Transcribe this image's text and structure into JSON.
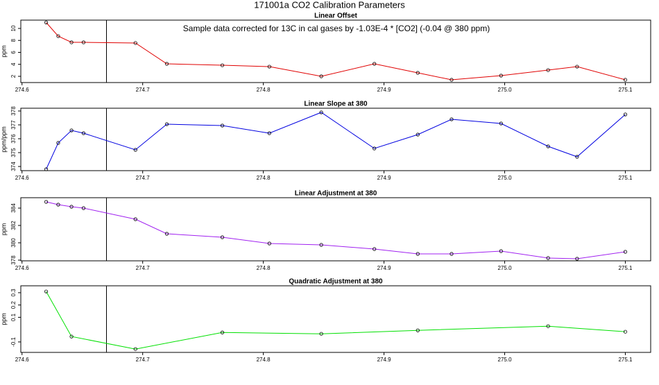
{
  "title": "171001a   CO2 Calibration Parameters",
  "chart_data": [
    {
      "type": "line",
      "title": "Linear Offset",
      "ylabel": "ppm",
      "annotation": "Sample data corrected for 13C in cal gases by -1.03E-4 * [CO2] (-0.04 @ 380 ppm)",
      "x": [
        274.62,
        274.63,
        274.641,
        274.651,
        274.694,
        274.72,
        274.766,
        274.805,
        274.848,
        274.892,
        274.928,
        274.956,
        274.997,
        275.036,
        275.06,
        275.1
      ],
      "values": [
        11.0,
        8.72,
        7.68,
        7.68,
        7.57,
        4.09,
        3.85,
        3.62,
        2.0,
        4.09,
        2.58,
        1.42,
        2.12,
        3.04,
        3.62,
        1.42
      ],
      "color": "#e00000",
      "vline": 274.67,
      "xlim": [
        274.599,
        275.121
      ],
      "ylim": [
        0.96,
        11.39
      ],
      "xticks": [
        274.6,
        274.7,
        274.8,
        274.9,
        {
          "value": 275,
          "label": "275.0"
        },
        275.1
      ],
      "yticks": [
        2,
        4,
        6,
        8,
        10
      ]
    },
    {
      "type": "line",
      "title": "Linear Slope at 380",
      "ylabel": "ppm/ppm",
      "x": [
        274.62,
        274.63,
        274.641,
        274.651,
        274.694,
        274.72,
        274.766,
        274.805,
        274.848,
        274.892,
        274.928,
        274.956,
        274.997,
        275.036,
        275.06,
        275.1
      ],
      "values": [
        373.8,
        375.7,
        376.6,
        376.4,
        375.2,
        377.05,
        376.95,
        376.4,
        377.9,
        375.3,
        376.3,
        377.4,
        377.1,
        375.45,
        374.7,
        377.75
      ],
      "color": "#0000e0",
      "vline": 274.67,
      "xlim": [
        274.599,
        275.121
      ],
      "ylim": [
        373.7,
        378.2
      ],
      "xticks": [
        274.6,
        274.7,
        274.8,
        274.9,
        {
          "value": 275,
          "label": "275.0"
        },
        275.1
      ],
      "yticks": [
        374,
        375,
        376,
        377,
        378
      ]
    },
    {
      "type": "line",
      "title": "Linear Adjustment at 380",
      "ylabel": "ppm",
      "x": [
        274.62,
        274.63,
        274.641,
        274.651,
        274.694,
        274.72,
        274.766,
        274.805,
        274.848,
        274.892,
        274.928,
        274.956,
        274.997,
        275.036,
        275.06,
        275.1
      ],
      "values": [
        384.72,
        384.4,
        384.16,
        384.0,
        382.72,
        381.04,
        380.64,
        379.92,
        379.76,
        379.28,
        378.72,
        378.72,
        379.04,
        378.24,
        378.16,
        378.96
      ],
      "color": "#a020f0",
      "vline": 274.67,
      "xlim": [
        274.599,
        275.121
      ],
      "ylim": [
        377.92,
        385.2
      ],
      "xticks": [
        274.6,
        274.7,
        274.8,
        274.9,
        {
          "value": 275,
          "label": "275.0"
        },
        275.1
      ],
      "yticks": [
        378,
        380,
        382,
        384
      ]
    },
    {
      "type": "line",
      "title": "Quadratic Adjustment at 380",
      "ylabel": "ppm",
      "x": [
        274.62,
        274.641,
        274.694,
        274.766,
        274.848,
        274.928,
        275.036,
        275.1
      ],
      "values": [
        0.31,
        -0.056,
        -0.158,
        -0.023,
        -0.034,
        -0.006,
        0.028,
        -0.017
      ],
      "color": "#00e000",
      "vline": 274.67,
      "xlim": [
        274.599,
        275.121
      ],
      "ylim": [
        -0.185,
        0.356
      ],
      "xticks": [
        274.6,
        274.7,
        274.8,
        274.9,
        {
          "value": 275,
          "label": "275.0"
        },
        275.1
      ],
      "yticks": [
        -0.1,
        0.1,
        0.2,
        0.3
      ]
    }
  ]
}
